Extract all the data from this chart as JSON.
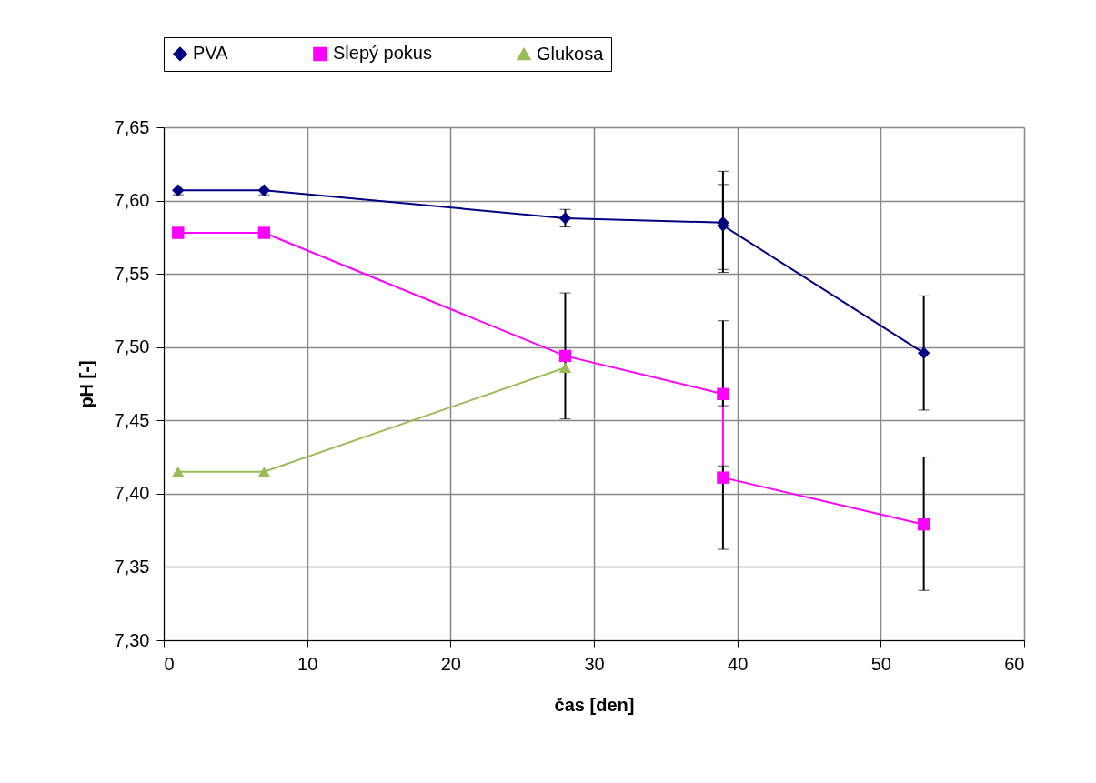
{
  "chart_data": {
    "type": "line",
    "xlabel": "čas [den]",
    "ylabel": "pH [-]",
    "xlim": [
      0,
      60
    ],
    "xticks": [
      0,
      10,
      20,
      30,
      40,
      50,
      60
    ],
    "ylim": [
      7.3,
      7.65
    ],
    "yticks": [
      {
        "value": 7.3,
        "label": "7,30"
      },
      {
        "value": 7.35,
        "label": "7,35"
      },
      {
        "value": 7.4,
        "label": "7,40"
      },
      {
        "value": 7.45,
        "label": "7,45"
      },
      {
        "value": 7.5,
        "label": "7,50"
      },
      {
        "value": 7.55,
        "label": "7,55"
      },
      {
        "value": 7.6,
        "label": "7,60"
      },
      {
        "value": 7.65,
        "label": "7,65"
      }
    ],
    "grid": true,
    "legend": "top",
    "line_style": "solid",
    "series": [
      {
        "name": "PVA",
        "color": "#000080",
        "marker": "diamond",
        "x": [
          1,
          7,
          28,
          39,
          39,
          53
        ],
        "values": [
          7.607,
          7.607,
          7.588,
          7.585,
          7.583,
          7.496
        ],
        "errors": [
          [
            7.604,
            7.61
          ],
          [
            7.604,
            7.61
          ],
          [
            7.582,
            7.594
          ],
          [
            7.551,
            7.62
          ],
          [
            7.553,
            7.611
          ],
          [
            7.457,
            7.535
          ]
        ]
      },
      {
        "name": "Slepý pokus",
        "color": "#ff00ff",
        "marker": "square",
        "x": [
          1,
          7,
          28,
          39,
          39,
          53
        ],
        "values": [
          7.578,
          7.578,
          7.494,
          7.468,
          7.411,
          7.379
        ],
        "errors": [
          null,
          null,
          [
            7.451,
            7.537
          ],
          [
            7.46,
            7.518
          ],
          [
            7.362,
            7.419
          ],
          [
            7.334,
            7.425
          ]
        ]
      },
      {
        "name": "Glukosa",
        "color": "#9bbb59",
        "marker": "triangle",
        "x": [
          1,
          7,
          28
        ],
        "values": [
          7.415,
          7.415,
          7.486
        ]
      }
    ]
  }
}
